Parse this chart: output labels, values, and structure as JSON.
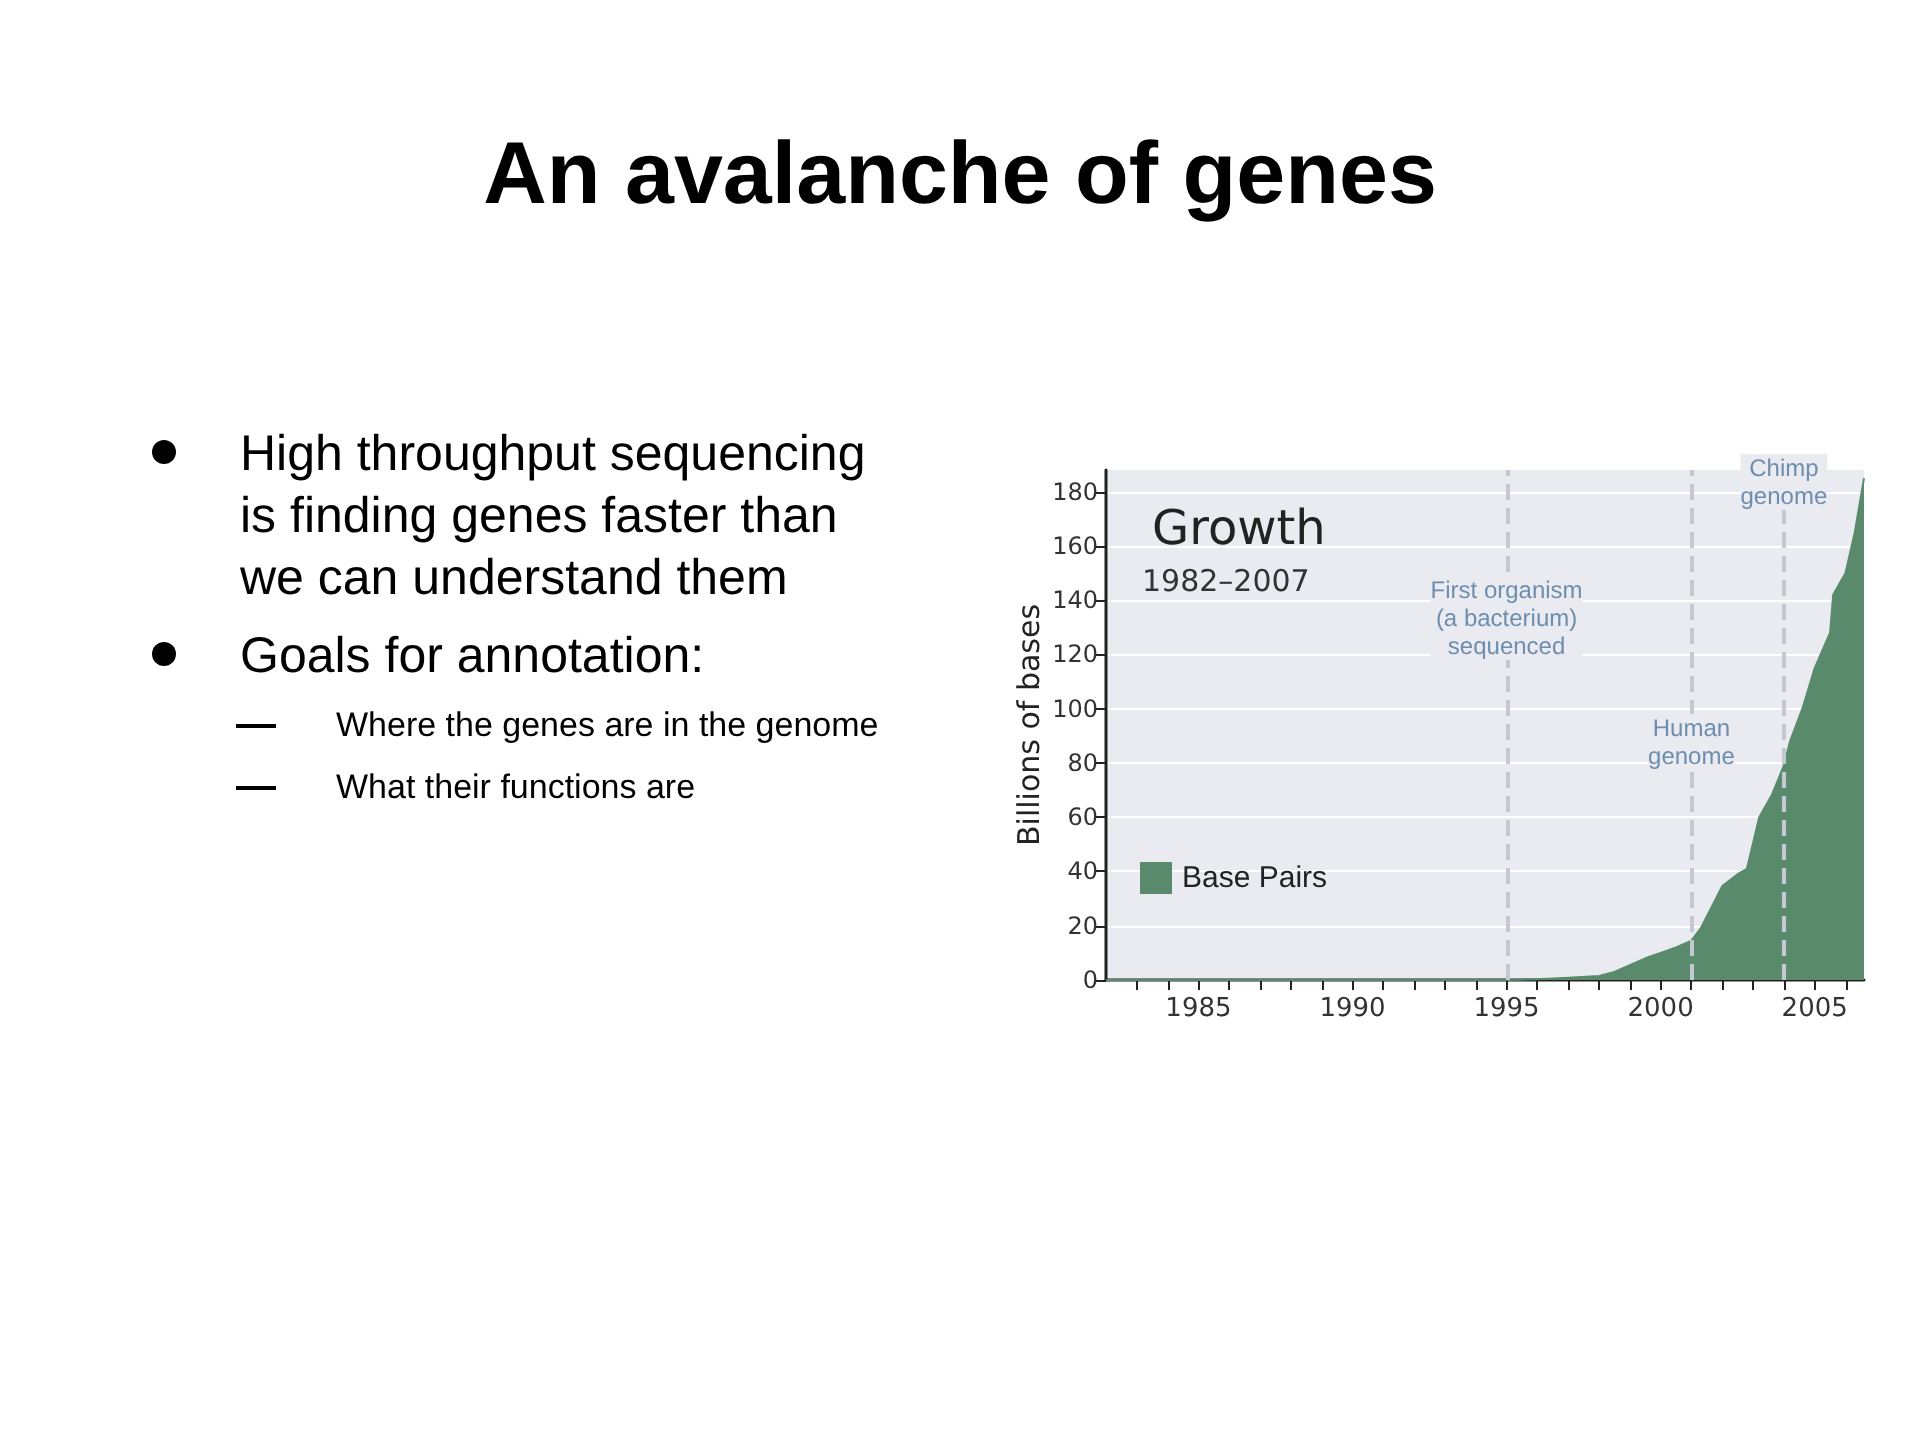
{
  "chart_data": {
    "type": "area",
    "title": "An avalanche of genes",
    "subtitle": "Growth",
    "ylabel": "Billions of bases",
    "annotations": [
      "1982–2007",
      "High throughput sequencing is finding genes faster than we can understand them",
      "Goals for annotation:",
      "Where the genes are in the genome",
      "What their functions are"
    ],
    "x": [
      1982,
      1995,
      1996,
      1997,
      1998,
      1998.5,
      1999,
      1999.5,
      2000,
      2000.5,
      2001,
      2001.3,
      2002,
      2002.5,
      2002.8,
      2003.2,
      2003.6,
      2004,
      2004.2,
      2004.6,
      2005,
      2005.5,
      2005.6,
      2006,
      2006.3,
      2006.6
    ],
    "series": [
      {
        "name": "Base Pairs",
        "color": "#5a8a6c",
        "values": [
          0,
          0,
          0.3,
          0.8,
          1.5,
          3,
          5.5,
          8,
          10,
          12,
          14.5,
          19,
          34.6,
          39,
          41,
          60,
          68,
          79,
          88,
          100,
          115,
          128,
          142,
          150,
          165,
          185
        ]
      }
    ],
    "xlim": [
      1982,
      2006.6
    ],
    "xticks": [
      {
        "value": 1983,
        "label": null
      },
      {
        "value": 1984,
        "label": null
      },
      1985,
      {
        "value": 1986,
        "label": null
      },
      {
        "value": 1987,
        "label": null
      },
      {
        "value": 1988,
        "label": null
      },
      {
        "value": 1989,
        "label": null
      },
      1990,
      {
        "value": 1991,
        "label": null
      },
      {
        "value": 1992,
        "label": null
      },
      {
        "value": 1993,
        "label": null
      },
      {
        "value": 1994,
        "label": null
      },
      1995,
      {
        "value": 1996,
        "label": null
      },
      {
        "value": 1997,
        "label": null
      },
      {
        "value": 1998,
        "label": null
      },
      {
        "value": 1999,
        "label": null
      },
      2000,
      {
        "value": 2001,
        "label": null
      },
      {
        "value": 2002,
        "label": null
      },
      {
        "value": 2003,
        "label": null
      },
      {
        "value": 2004,
        "label": null
      },
      2005,
      {
        "value": 2006,
        "label": null
      }
    ],
    "ylim": [
      0,
      188
    ],
    "yticks": [
      0,
      20,
      40,
      60,
      80,
      100,
      120,
      140,
      160,
      180
    ],
    "grid": "y",
    "legend": "bottom left",
    "ref_lines": [
      {
        "axis": "x",
        "value": 1995,
        "label": "First organism\n(a bacterium)\nsequenced",
        "color": "#c4c8d0",
        "line_style": "dashed"
      },
      {
        "axis": "x",
        "value": 2001,
        "label": "Human\ngenome",
        "color": "#c4c8d0",
        "line_style": "dashed"
      },
      {
        "axis": "x",
        "value": 2004,
        "label": "Chimp\ngenome",
        "color": "#c4c8d0",
        "line_style": "dashed"
      }
    ]
  }
}
